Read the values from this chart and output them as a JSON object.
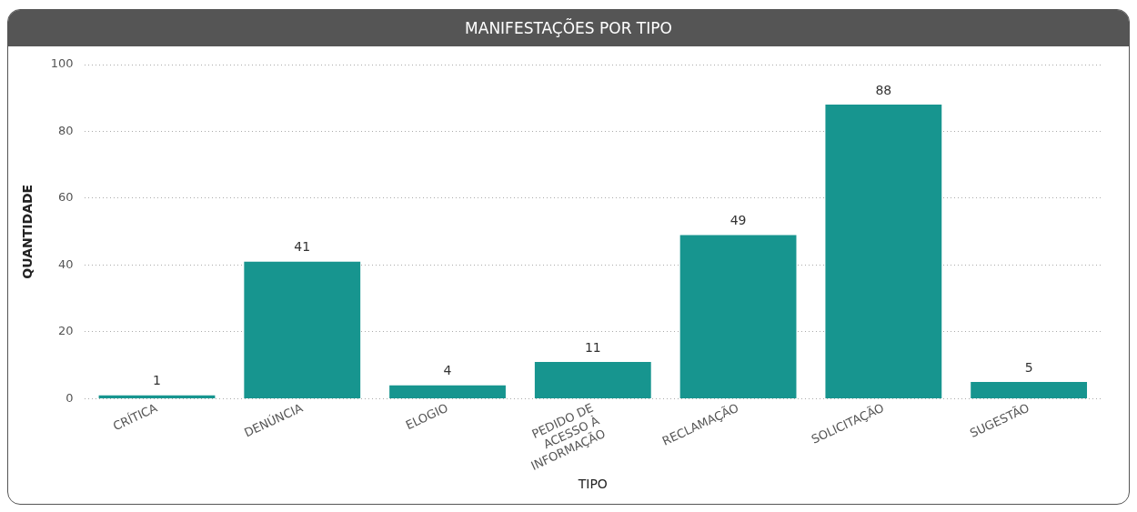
{
  "chart_data": {
    "type": "bar",
    "title": "MANIFESTAÇÕES POR TIPO",
    "xlabel": "TIPO",
    "ylabel": "QUANTIDADE",
    "categories": [
      "CRÍTICA",
      "DENÚNCIA",
      "ELOGIO",
      "PEDIDO DE ACESSO À INFORMAÇÃO",
      "RECLAMAÇÃO",
      "SOLICITAÇÃO",
      "SUGESTÃO"
    ],
    "values": [
      1,
      41,
      4,
      11,
      49,
      88,
      5
    ],
    "color": "#17958f",
    "ylim": [
      0,
      100
    ],
    "yticks": [
      0,
      20,
      40,
      60,
      80,
      100
    ],
    "grid": "y",
    "legend": false,
    "data_labels": true
  }
}
